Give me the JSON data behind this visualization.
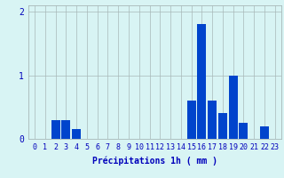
{
  "hours": [
    0,
    1,
    2,
    3,
    4,
    5,
    6,
    7,
    8,
    9,
    10,
    11,
    12,
    13,
    14,
    15,
    16,
    17,
    18,
    19,
    20,
    21,
    22,
    23
  ],
  "values": [
    0,
    0,
    0.3,
    0.3,
    0.15,
    0,
    0,
    0,
    0,
    0,
    0,
    0,
    0,
    0,
    0,
    0.6,
    1.8,
    0.6,
    0.4,
    1.0,
    0.25,
    0,
    0.2,
    0
  ],
  "bar_color": "#0044cc",
  "bg_color": "#d8f4f4",
  "grid_color": "#a8b8b8",
  "axis_color": "#0000bb",
  "xlabel": "Précipitations 1h ( mm )",
  "xlabel_fontsize": 7,
  "tick_fontsize": 6,
  "ylim": [
    0,
    2.1
  ],
  "yticks": [
    0,
    1,
    2
  ],
  "figsize": [
    3.2,
    2.0
  ],
  "dpi": 100
}
